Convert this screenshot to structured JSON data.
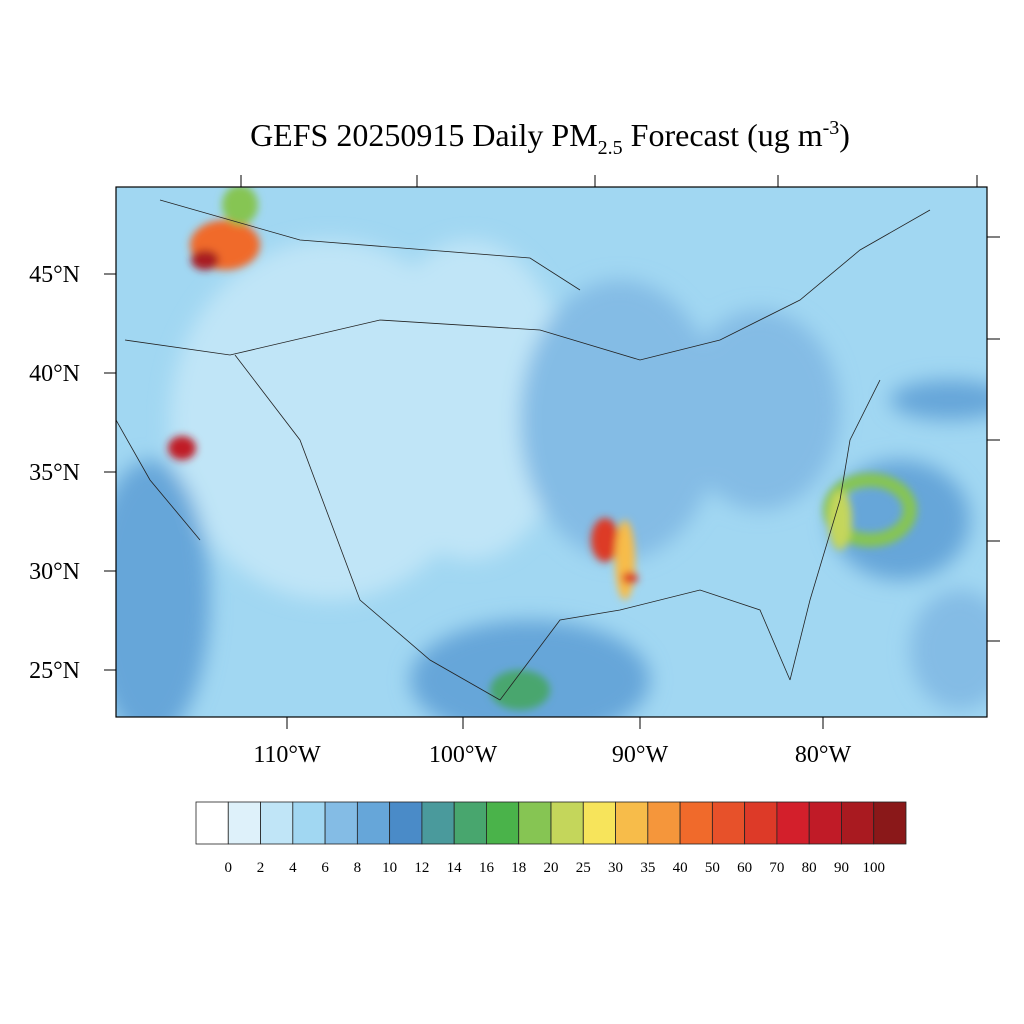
{
  "title": {
    "main": "GEFS 20250915 Daily PM",
    "subscript": "2.5",
    "middle": " Forecast (ug m",
    "superscript": "-3",
    "end": ")"
  },
  "map": {
    "lat_labels": [
      "45°N",
      "40°N",
      "35°N",
      "30°N",
      "25°N"
    ],
    "lon_labels": [
      "110°W",
      "100°W",
      "90°W",
      "80°W"
    ]
  },
  "colorbar": {
    "colors": [
      "#ffffff",
      "#def1fa",
      "#c0e5f7",
      "#a1d7f2",
      "#84bce5",
      "#66a6d9",
      "#4a8bc8",
      "#4a9a9c",
      "#48a66e",
      "#4ab34a",
      "#86c553",
      "#c4d65b",
      "#f7e45b",
      "#f7bc4a",
      "#f5963b",
      "#f06a2b",
      "#e7512a",
      "#dd3a28",
      "#d31f2b",
      "#c01b27",
      "#a91a20",
      "#8a1819"
    ],
    "labels": [
      0,
      2,
      4,
      6,
      8,
      10,
      12,
      14,
      16,
      18,
      20,
      25,
      30,
      35,
      40,
      50,
      60,
      70,
      80,
      90,
      100
    ]
  }
}
